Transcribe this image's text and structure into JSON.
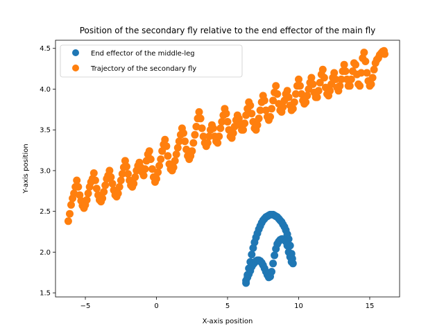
{
  "chart_data": {
    "type": "scatter",
    "title": "Position of the secondary fly relative to the end effector of the main fly",
    "xlabel": "X-axis position",
    "ylabel": "Y-axis position",
    "xlim": [
      -7.1,
      17.1
    ],
    "ylim": [
      1.45,
      4.6
    ],
    "xticks": [
      -5,
      0,
      5,
      10,
      15
    ],
    "xtick_labels": [
      "−5",
      "0",
      "5",
      "10",
      "15"
    ],
    "yticks": [
      1.5,
      2.0,
      2.5,
      3.0,
      3.5,
      4.0,
      4.5
    ],
    "ytick_labels": [
      "1.5",
      "2.0",
      "2.5",
      "3.0",
      "3.5",
      "4.0",
      "4.5"
    ],
    "grid": false,
    "legend": "top-left",
    "series": [
      {
        "name": "End effector of the middle-leg",
        "color": "#1f77b4",
        "points": [
          [
            6.3,
            1.62
          ],
          [
            6.4,
            1.72
          ],
          [
            6.5,
            1.8
          ],
          [
            6.6,
            1.88
          ],
          [
            6.7,
            1.97
          ],
          [
            6.8,
            2.05
          ],
          [
            6.9,
            2.12
          ],
          [
            7.0,
            2.18
          ],
          [
            7.1,
            2.23
          ],
          [
            7.2,
            2.28
          ],
          [
            7.3,
            2.32
          ],
          [
            7.4,
            2.36
          ],
          [
            7.5,
            2.39
          ],
          [
            7.6,
            2.41
          ],
          [
            7.7,
            2.43
          ],
          [
            7.8,
            2.44
          ],
          [
            7.9,
            2.45
          ],
          [
            8.0,
            2.46
          ],
          [
            8.1,
            2.46
          ],
          [
            8.2,
            2.46
          ],
          [
            8.3,
            2.45
          ],
          [
            8.4,
            2.44
          ],
          [
            8.5,
            2.43
          ],
          [
            8.6,
            2.41
          ],
          [
            8.7,
            2.39
          ],
          [
            8.8,
            2.37
          ],
          [
            8.9,
            2.34
          ],
          [
            9.0,
            2.31
          ],
          [
            9.1,
            2.27
          ],
          [
            9.2,
            2.22
          ],
          [
            9.3,
            2.16
          ],
          [
            9.4,
            2.08
          ],
          [
            9.5,
            1.98
          ],
          [
            9.55,
            1.92
          ],
          [
            9.6,
            1.86
          ],
          [
            6.3,
            1.65
          ],
          [
            6.4,
            1.69
          ],
          [
            6.5,
            1.73
          ],
          [
            6.6,
            1.77
          ],
          [
            6.7,
            1.82
          ],
          [
            6.8,
            1.85
          ],
          [
            6.9,
            1.87
          ],
          [
            7.0,
            1.89
          ],
          [
            7.1,
            1.9
          ],
          [
            7.2,
            1.9
          ],
          [
            7.3,
            1.89
          ],
          [
            7.4,
            1.87
          ],
          [
            7.5,
            1.84
          ],
          [
            7.6,
            1.8
          ],
          [
            7.7,
            1.76
          ],
          [
            7.8,
            1.72
          ],
          [
            7.9,
            1.69
          ],
          [
            8.0,
            1.7
          ],
          [
            8.1,
            1.76
          ],
          [
            8.2,
            1.86
          ],
          [
            8.3,
            1.96
          ],
          [
            8.4,
            2.04
          ],
          [
            8.5,
            2.1
          ],
          [
            8.6,
            2.13
          ],
          [
            8.7,
            2.15
          ],
          [
            8.8,
            2.16
          ],
          [
            8.9,
            2.16
          ],
          [
            9.0,
            2.15
          ],
          [
            9.1,
            2.13
          ],
          [
            9.2,
            2.08
          ],
          [
            9.3,
            2.0
          ],
          [
            9.4,
            1.94
          ],
          [
            9.5,
            1.88
          ]
        ]
      },
      {
        "name": "Trajectory of the secondary fly",
        "color": "#ff7f0e",
        "points": [
          [
            -6.2,
            2.38
          ],
          [
            -6.1,
            2.47
          ],
          [
            -6.0,
            2.58
          ],
          [
            -5.9,
            2.66
          ],
          [
            -5.8,
            2.72
          ],
          [
            -5.7,
            2.8
          ],
          [
            -5.6,
            2.88
          ],
          [
            -5.5,
            2.8
          ],
          [
            -5.4,
            2.7
          ],
          [
            -5.3,
            2.63
          ],
          [
            -5.2,
            2.57
          ],
          [
            -5.1,
            2.54
          ],
          [
            -5.0,
            2.58
          ],
          [
            -4.9,
            2.64
          ],
          [
            -4.8,
            2.72
          ],
          [
            -4.7,
            2.8
          ],
          [
            -4.6,
            2.86
          ],
          [
            -4.5,
            2.9
          ],
          [
            -4.4,
            2.97
          ],
          [
            -4.3,
            2.88
          ],
          [
            -4.2,
            2.78
          ],
          [
            -4.1,
            2.7
          ],
          [
            -4.0,
            2.64
          ],
          [
            -3.9,
            2.62
          ],
          [
            -3.8,
            2.66
          ],
          [
            -3.7,
            2.74
          ],
          [
            -3.6,
            2.82
          ],
          [
            -3.5,
            2.9
          ],
          [
            -3.4,
            2.94
          ],
          [
            -3.3,
            3.0
          ],
          [
            -3.2,
            2.92
          ],
          [
            -3.1,
            2.84
          ],
          [
            -3.0,
            2.76
          ],
          [
            -2.9,
            2.7
          ],
          [
            -2.8,
            2.68
          ],
          [
            -2.7,
            2.72
          ],
          [
            -2.6,
            2.8
          ],
          [
            -2.5,
            2.88
          ],
          [
            -2.4,
            2.96
          ],
          [
            -2.3,
            3.04
          ],
          [
            -2.2,
            3.12
          ],
          [
            -2.1,
            3.05
          ],
          [
            -2.0,
            2.96
          ],
          [
            -1.9,
            2.88
          ],
          [
            -1.8,
            2.82
          ],
          [
            -1.7,
            2.8
          ],
          [
            -1.6,
            2.84
          ],
          [
            -1.5,
            2.92
          ],
          [
            -1.4,
            3.0
          ],
          [
            -1.3,
            3.06
          ],
          [
            -1.2,
            3.1
          ],
          [
            -1.1,
            3.04
          ],
          [
            -1.0,
            2.98
          ],
          [
            -0.9,
            2.94
          ],
          [
            -0.8,
            3.02
          ],
          [
            -0.7,
            3.12
          ],
          [
            -0.6,
            3.2
          ],
          [
            -0.5,
            3.24
          ],
          [
            -0.4,
            3.14
          ],
          [
            -0.3,
            3.02
          ],
          [
            -0.2,
            2.92
          ],
          [
            -0.1,
            2.86
          ],
          [
            0.0,
            2.9
          ],
          [
            0.1,
            2.98
          ],
          [
            0.2,
            3.06
          ],
          [
            0.3,
            3.14
          ],
          [
            0.4,
            3.24
          ],
          [
            0.5,
            3.32
          ],
          [
            0.6,
            3.38
          ],
          [
            0.7,
            3.3
          ],
          [
            0.8,
            3.18
          ],
          [
            0.9,
            3.08
          ],
          [
            1.0,
            3.02
          ],
          [
            1.1,
            3.0
          ],
          [
            1.2,
            3.04
          ],
          [
            1.3,
            3.12
          ],
          [
            1.4,
            3.2
          ],
          [
            1.5,
            3.28
          ],
          [
            1.6,
            3.36
          ],
          [
            1.7,
            3.44
          ],
          [
            1.8,
            3.52
          ],
          [
            1.9,
            3.46
          ],
          [
            2.0,
            3.36
          ],
          [
            2.1,
            3.26
          ],
          [
            2.2,
            3.18
          ],
          [
            2.3,
            3.14
          ],
          [
            2.4,
            3.18
          ],
          [
            2.5,
            3.24
          ],
          [
            2.6,
            3.34
          ],
          [
            2.7,
            3.44
          ],
          [
            2.8,
            3.54
          ],
          [
            2.9,
            3.64
          ],
          [
            3.0,
            3.72
          ],
          [
            3.1,
            3.64
          ],
          [
            3.2,
            3.52
          ],
          [
            3.3,
            3.42
          ],
          [
            3.4,
            3.34
          ],
          [
            3.5,
            3.3
          ],
          [
            3.6,
            3.34
          ],
          [
            3.7,
            3.42
          ],
          [
            3.8,
            3.5
          ],
          [
            3.9,
            3.56
          ],
          [
            4.0,
            3.52
          ],
          [
            4.1,
            3.42
          ],
          [
            4.2,
            3.36
          ],
          [
            4.3,
            3.34
          ],
          [
            4.4,
            3.42
          ],
          [
            4.5,
            3.52
          ],
          [
            4.6,
            3.6
          ],
          [
            4.7,
            3.68
          ],
          [
            4.8,
            3.76
          ],
          [
            4.9,
            3.7
          ],
          [
            5.0,
            3.6
          ],
          [
            5.1,
            3.5
          ],
          [
            5.2,
            3.42
          ],
          [
            5.3,
            3.4
          ],
          [
            5.4,
            3.46
          ],
          [
            5.5,
            3.54
          ],
          [
            5.6,
            3.62
          ],
          [
            5.7,
            3.68
          ],
          [
            5.8,
            3.64
          ],
          [
            5.9,
            3.56
          ],
          [
            6.0,
            3.5
          ],
          [
            6.1,
            3.5
          ],
          [
            6.2,
            3.58
          ],
          [
            6.3,
            3.68
          ],
          [
            6.4,
            3.76
          ],
          [
            6.5,
            3.84
          ],
          [
            6.6,
            3.8
          ],
          [
            6.7,
            3.7
          ],
          [
            6.8,
            3.6
          ],
          [
            6.9,
            3.52
          ],
          [
            7.0,
            3.5
          ],
          [
            7.1,
            3.56
          ],
          [
            7.2,
            3.64
          ],
          [
            7.3,
            3.74
          ],
          [
            7.4,
            3.84
          ],
          [
            7.5,
            3.92
          ],
          [
            7.6,
            3.86
          ],
          [
            7.7,
            3.74
          ],
          [
            7.8,
            3.66
          ],
          [
            7.9,
            3.62
          ],
          [
            8.0,
            3.66
          ],
          [
            8.1,
            3.76
          ],
          [
            8.2,
            3.86
          ],
          [
            8.3,
            3.96
          ],
          [
            8.4,
            4.04
          ],
          [
            8.5,
            3.94
          ],
          [
            8.6,
            3.82
          ],
          [
            8.7,
            3.74
          ],
          [
            8.8,
            3.72
          ],
          [
            8.9,
            3.78
          ],
          [
            9.0,
            3.86
          ],
          [
            9.1,
            3.94
          ],
          [
            9.2,
            3.98
          ],
          [
            9.3,
            3.9
          ],
          [
            9.4,
            3.8
          ],
          [
            9.5,
            3.74
          ],
          [
            9.6,
            3.76
          ],
          [
            9.7,
            3.84
          ],
          [
            9.8,
            3.94
          ],
          [
            9.9,
            4.04
          ],
          [
            10.0,
            4.12
          ],
          [
            10.1,
            4.04
          ],
          [
            10.2,
            3.94
          ],
          [
            10.3,
            3.86
          ],
          [
            10.4,
            3.82
          ],
          [
            10.5,
            3.84
          ],
          [
            10.6,
            3.92
          ],
          [
            10.7,
            4.0
          ],
          [
            10.8,
            4.08
          ],
          [
            10.9,
            4.14
          ],
          [
            11.0,
            4.06
          ],
          [
            11.1,
            3.96
          ],
          [
            11.2,
            3.9
          ],
          [
            11.3,
            3.9
          ],
          [
            11.4,
            3.98
          ],
          [
            11.5,
            4.08
          ],
          [
            11.6,
            4.18
          ],
          [
            11.7,
            4.24
          ],
          [
            11.8,
            4.14
          ],
          [
            11.9,
            4.02
          ],
          [
            12.0,
            3.94
          ],
          [
            12.1,
            3.92
          ],
          [
            12.2,
            3.98
          ],
          [
            12.3,
            4.06
          ],
          [
            12.4,
            4.14
          ],
          [
            12.5,
            4.2
          ],
          [
            12.6,
            4.12
          ],
          [
            12.7,
            4.02
          ],
          [
            12.8,
            3.98
          ],
          [
            12.9,
            4.04
          ],
          [
            13.0,
            4.12
          ],
          [
            13.1,
            4.22
          ],
          [
            13.2,
            4.3
          ],
          [
            13.3,
            4.22
          ],
          [
            13.4,
            4.12
          ],
          [
            13.5,
            4.04
          ],
          [
            13.6,
            4.04
          ],
          [
            13.7,
            4.12
          ],
          [
            13.8,
            4.22
          ],
          [
            13.9,
            4.32
          ],
          [
            14.0,
            4.3
          ],
          [
            14.1,
            4.18
          ],
          [
            14.2,
            4.06
          ],
          [
            14.3,
            4.04
          ],
          [
            14.4,
            4.2
          ],
          [
            14.5,
            4.38
          ],
          [
            14.6,
            4.45
          ],
          [
            14.7,
            4.34
          ],
          [
            14.8,
            4.2
          ],
          [
            14.9,
            4.1
          ],
          [
            15.0,
            4.04
          ],
          [
            15.1,
            4.06
          ],
          [
            15.2,
            4.14
          ],
          [
            15.3,
            4.24
          ],
          [
            15.4,
            4.32
          ],
          [
            15.5,
            4.36
          ],
          [
            15.6,
            4.38
          ],
          [
            15.7,
            4.42
          ],
          [
            15.8,
            4.44
          ],
          [
            15.9,
            4.46
          ],
          [
            16.0,
            4.47
          ],
          [
            16.05,
            4.43
          ]
        ]
      }
    ]
  }
}
